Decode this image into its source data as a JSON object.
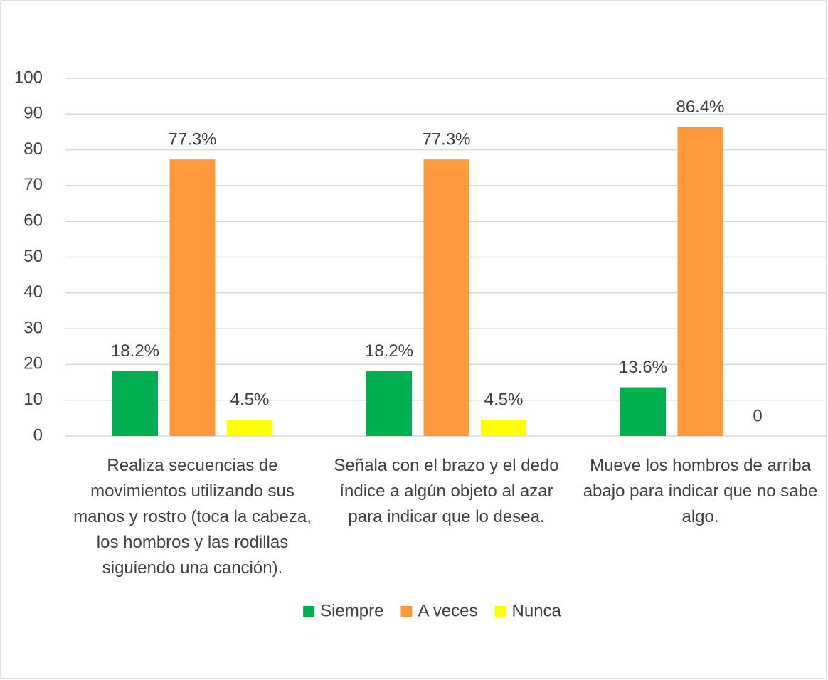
{
  "chart_data": {
    "type": "bar",
    "categories": [
      "Realiza secuencias de movimientos utilizando sus manos y rostro (toca la cabeza, los hombros y las rodillas siguiendo una canción).",
      "Señala con el brazo y el dedo índice a algún objeto al azar para indicar que lo desea.",
      "Mueve los hombros de arriba abajo para indicar que no sabe algo."
    ],
    "series": [
      {
        "name": "Siempre",
        "color": "#00b050",
        "values": [
          18.2,
          18.2,
          13.6
        ],
        "value_labels": [
          "18.2%",
          "18.2%",
          "13.6%"
        ]
      },
      {
        "name": "A veces",
        "color": "#ff9a3c",
        "values": [
          77.3,
          77.3,
          86.4
        ],
        "value_labels": [
          "77.3%",
          "77.3%",
          "86.4%"
        ]
      },
      {
        "name": "Nunca",
        "color": "#ffff00",
        "values": [
          4.5,
          4.5,
          0
        ],
        "value_labels": [
          "4.5%",
          "4.5%",
          "0"
        ]
      }
    ],
    "ylim": [
      0,
      100
    ],
    "yticks": [
      0,
      10,
      20,
      30,
      40,
      50,
      60,
      70,
      80,
      90,
      100
    ],
    "grid": true,
    "legend": "bottom"
  }
}
